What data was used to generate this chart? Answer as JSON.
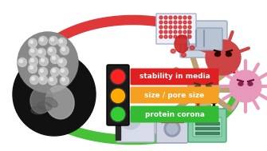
{
  "bg_color": "#ffffff",
  "traffic_light": {
    "lights": [
      {
        "color": "#ff2222",
        "label": "stability in media",
        "label_bg": "#e02020"
      },
      {
        "color": "#ffaa00",
        "label": "size / pore size",
        "label_bg": "#f5a020"
      },
      {
        "color": "#33cc33",
        "label": "protein corona",
        "label_bg": "#33bb33"
      }
    ]
  },
  "red_arrow": {
    "color": "#dd2222",
    "alpha": 0.9
  },
  "green_arrow": {
    "color": "#33bb22",
    "alpha": 0.9
  },
  "label_fontsize": 6.5,
  "label_fontstyle": "bold",
  "figw": 3.35,
  "figh": 1.89,
  "dpi": 100
}
